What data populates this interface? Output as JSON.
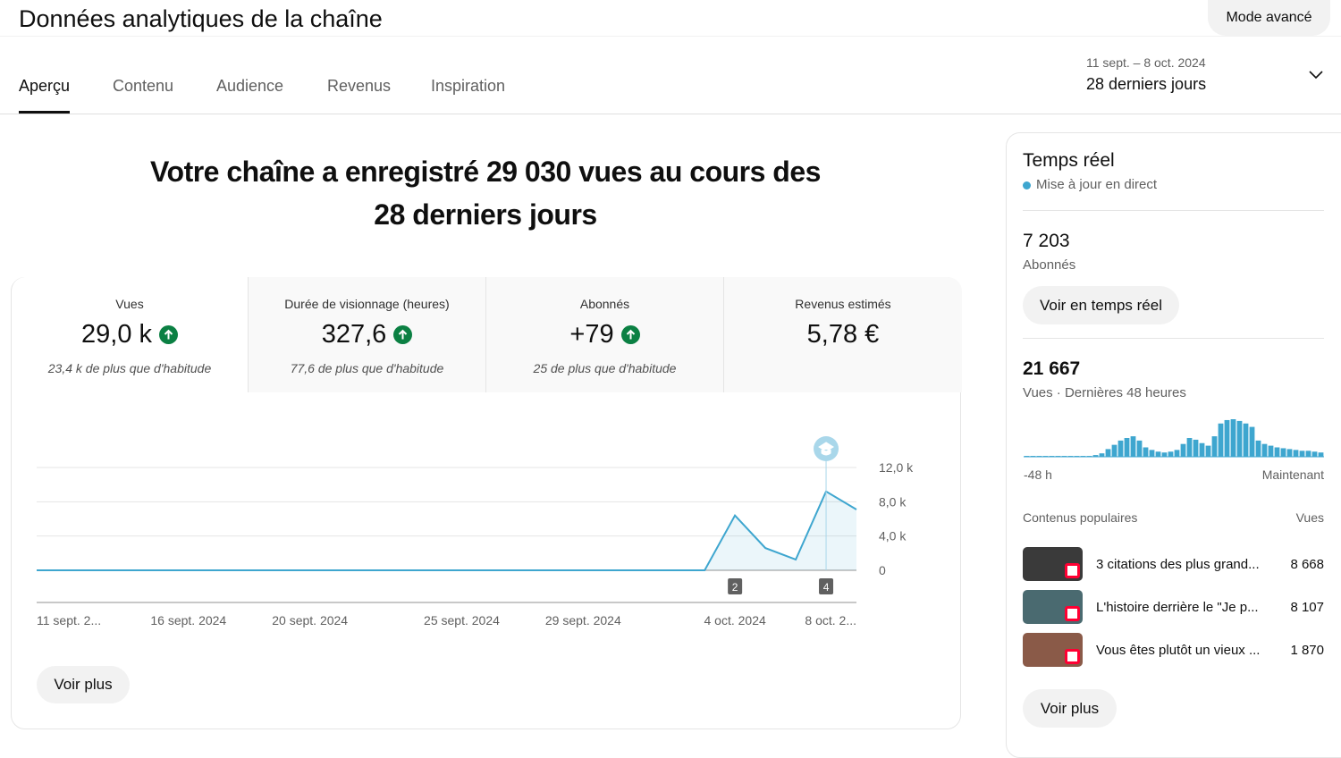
{
  "header": {
    "title": "Données analytiques de la chaîne",
    "advanced_button": "Mode avancé"
  },
  "tabs": [
    "Aperçu",
    "Contenu",
    "Audience",
    "Revenus",
    "Inspiration"
  ],
  "date_range": {
    "dates": "11 sept. – 8 oct. 2024",
    "label": "28 derniers jours"
  },
  "headline": [
    "Votre chaîne a enregistré 29 030 vues au cours des",
    "28 derniers jours"
  ],
  "metrics": [
    {
      "label": "Vues",
      "value": "29,0 k",
      "note": "23,4 k de plus que d'habitude",
      "up": true
    },
    {
      "label": "Durée de visionnage (heures)",
      "value": "327,6",
      "note": "77,6 de plus que d'habitude",
      "up": true
    },
    {
      "label": "Abonnés",
      "value": "+79",
      "note": "25 de plus que d'habitude",
      "up": true
    },
    {
      "label": "Revenus estimés",
      "value": "5,78 €"
    }
  ],
  "see_more": "Voir plus",
  "chart_data": [
    {
      "type": "line",
      "color": "#3ea6cf",
      "grid": true,
      "categories": [
        "11 sept. 2...",
        null,
        null,
        null,
        null,
        "16 sept. 2024",
        null,
        null,
        null,
        "20 sept. 2024",
        null,
        null,
        null,
        null,
        "25 sept. 2024",
        null,
        null,
        null,
        "29 sept. 2024",
        null,
        null,
        null,
        null,
        "4 oct. 2024",
        null,
        null,
        null,
        "8 oct. 2..."
      ],
      "values": [
        0,
        0,
        0,
        0,
        0,
        0,
        0,
        0,
        0,
        0,
        0,
        0,
        0,
        0,
        0,
        0,
        0,
        0,
        0,
        0,
        0,
        0,
        0,
        6400,
        2600,
        1250,
        9200,
        7100
      ],
      "ylim": [
        0,
        12000
      ],
      "yticks": [
        0,
        {
          "value": 4000,
          "label": "4,0 k"
        },
        {
          "value": 8000,
          "label": "8,0 k"
        },
        {
          "value": 12000,
          "label": "12,0 k"
        }
      ],
      "annotations": [
        {
          "index": 23,
          "label": "2"
        },
        {
          "index": 26,
          "label": "4"
        }
      ]
    },
    {
      "type": "bar",
      "color": "#3ea6cf",
      "values": [
        40,
        40,
        40,
        40,
        40,
        40,
        40,
        40,
        40,
        40,
        40,
        80,
        160,
        360,
        560,
        760,
        880,
        960,
        760,
        440,
        320,
        240,
        200,
        240,
        320,
        600,
        880,
        800,
        640,
        520,
        960,
        1560,
        1720,
        1760,
        1680,
        1560,
        1400,
        760,
        600,
        520,
        440,
        400,
        360,
        320,
        280,
        280,
        240,
        200
      ],
      "xlabels": [
        "-48 h",
        "Maintenant"
      ]
    }
  ],
  "realtime": {
    "title": "Temps réel",
    "status": "Mise à jour en direct",
    "subscribers": {
      "value": "7 203",
      "label": "Abonnés"
    },
    "button": "Voir en temps réel",
    "views": {
      "value": "21 667",
      "label": "Vues · Dernières 48 heures"
    },
    "popular": {
      "title": "Contenus populaires",
      "column": "Vues",
      "items": [
        {
          "title": "3 citations des plus grand...",
          "views": "8 668"
        },
        {
          "title": "L'histoire derrière le \"Je p...",
          "views": "8 107"
        },
        {
          "title": "Vous êtes plutôt un vieux ...",
          "views": "1 870"
        }
      ]
    },
    "see_more": "Voir plus"
  }
}
